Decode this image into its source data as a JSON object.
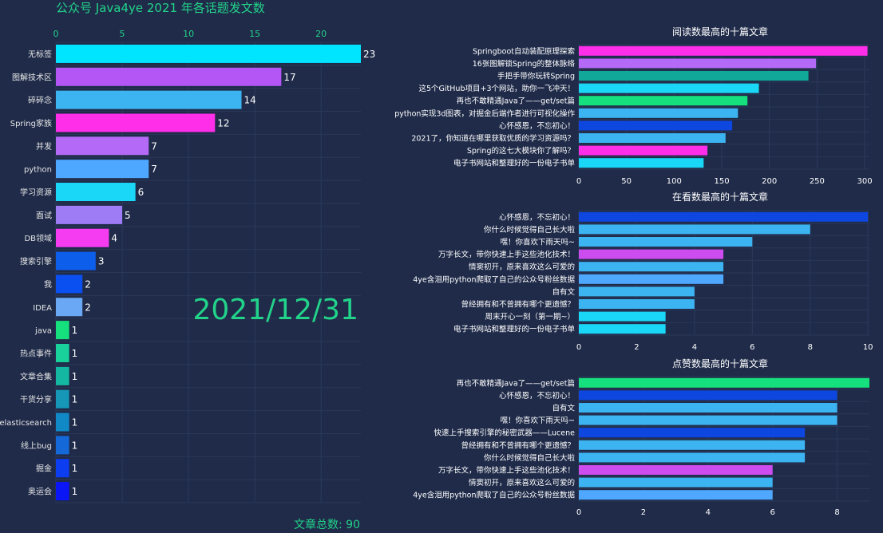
{
  "page": {
    "title": "公众号 Java4ye 2021 年各话题发文数",
    "date": "2021/12/31",
    "total": "文章总数: 90"
  },
  "chart_data": [
    {
      "type": "bar",
      "orientation": "horizontal",
      "title": "公众号 Java4ye 2021 年各话题发文数",
      "x_ticks": [
        0,
        5,
        10,
        15,
        20
      ],
      "xlim": [
        0,
        23
      ],
      "categories": [
        "无标签",
        "图解技术区",
        "碎碎念",
        "Spring家族",
        "并发",
        "python",
        "学习资源",
        "面试",
        "DB领域",
        "搜索引擎",
        "我",
        "IDEA",
        "java",
        "热点事件",
        "文章合集",
        "干货分享",
        "elasticsearch",
        "线上bug",
        "掘金",
        "奥运会"
      ],
      "values": [
        23,
        17,
        14,
        12,
        7,
        7,
        6,
        5,
        4,
        3,
        2,
        2,
        1,
        1,
        1,
        1,
        1,
        1,
        1,
        1
      ],
      "colors": [
        "#00e5ff",
        "#b455f5",
        "#3db4f2",
        "#ff2ee8",
        "#b46af6",
        "#4fa8ff",
        "#1ad7f7",
        "#9d7cf6",
        "#f53cf0",
        "#0d5eea",
        "#0a50f0",
        "#6aa8f5",
        "#16e07d",
        "#19d19a",
        "#14b8a2",
        "#1697b7",
        "#1289c7",
        "#1468d8",
        "#0c3df0",
        "#0a16f6"
      ]
    },
    {
      "type": "bar",
      "orientation": "horizontal",
      "title": "阅读数最高的十篇文章",
      "x_ticks": [
        0,
        50,
        100,
        150,
        200,
        250,
        300
      ],
      "xlim": [
        0,
        305
      ],
      "categories": [
        "Springboot自动装配原理探索",
        "16张图解锁Spring的整体脉络",
        "手把手带你玩转Spring",
        "这5个GitHub项目+3个网站，助你一飞冲天！",
        "再也不敢精通Java了——get/set篇",
        "python实现3d图表，对掘金后端作者进行可视化操作",
        "心怀感恩，不忘初心！",
        "2021了，你知道在哪里获取优质的学习资源吗？",
        "Spring的这七大模块你了解吗？",
        "电子书网站和整理好的一份电子书单"
      ],
      "values": [
        303,
        249,
        241,
        189,
        177,
        167,
        161,
        154,
        135,
        131
      ],
      "colors": [
        "#ff2ee8",
        "#b46af6",
        "#11a89a",
        "#1ad7f7",
        "#16e07d",
        "#3db4f2",
        "#0d47e0",
        "#3db4f2",
        "#ff2ee8",
        "#1ad7f7"
      ]
    },
    {
      "type": "bar",
      "orientation": "horizontal",
      "title": "在看数最高的十篇文章",
      "x_ticks": [
        0,
        2,
        4,
        6,
        8,
        10
      ],
      "xlim": [
        0,
        10.05
      ],
      "categories": [
        "心怀感恩，不忘初心！",
        "你什么时候觉得自己长大啦",
        "嘿！你喜欢下雨天吗~",
        "万字长文，带你快速上手这些池化技术！",
        "情窦初开，原来喜欢这么可爱的",
        "4ye含泪用python爬取了自己的公众号粉丝数据",
        "自有文",
        "曾经拥有和不曾拥有哪个更遗憾？",
        "周末开心一刻（第一期~）",
        "电子书网站和整理好的一份电子书单"
      ],
      "values": [
        10,
        8,
        6,
        5,
        5,
        5,
        4,
        4,
        3,
        3
      ],
      "colors": [
        "#0d47e0",
        "#3db4f2",
        "#3db4f2",
        "#cc4cf0",
        "#3db4f2",
        "#4fa8ff",
        "#3db4f2",
        "#3db4f2",
        "#1ad7f7",
        "#1ad7f7"
      ]
    },
    {
      "type": "bar",
      "orientation": "horizontal",
      "title": "点赞数最高的十篇文章",
      "x_ticks": [
        0,
        2,
        4,
        6,
        8
      ],
      "xlim": [
        0,
        9
      ],
      "categories": [
        "再也不敢精通Java了——get/set篇",
        "心怀感恩，不忘初心！",
        "自有文",
        "嘿！你喜欢下雨天吗~",
        "快速上手搜索引擎的秘密武器——Lucene",
        "曾经拥有和不曾拥有哪个更遗憾？",
        "你什么时候觉得自己长大啦",
        "万字长文，带你快速上手这些池化技术！",
        "情窦初开，原来喜欢这么可爱的",
        "4ye含泪用python爬取了自己的公众号粉丝数据"
      ],
      "values": [
        9,
        8,
        8,
        8,
        7,
        7,
        7,
        6,
        6,
        6
      ],
      "colors": [
        "#16e07d",
        "#0d47e0",
        "#3db4f2",
        "#3db4f2",
        "#0d47e0",
        "#3db4f2",
        "#3db4f2",
        "#cc4cf0",
        "#3db4f2",
        "#4fa8ff"
      ]
    }
  ]
}
